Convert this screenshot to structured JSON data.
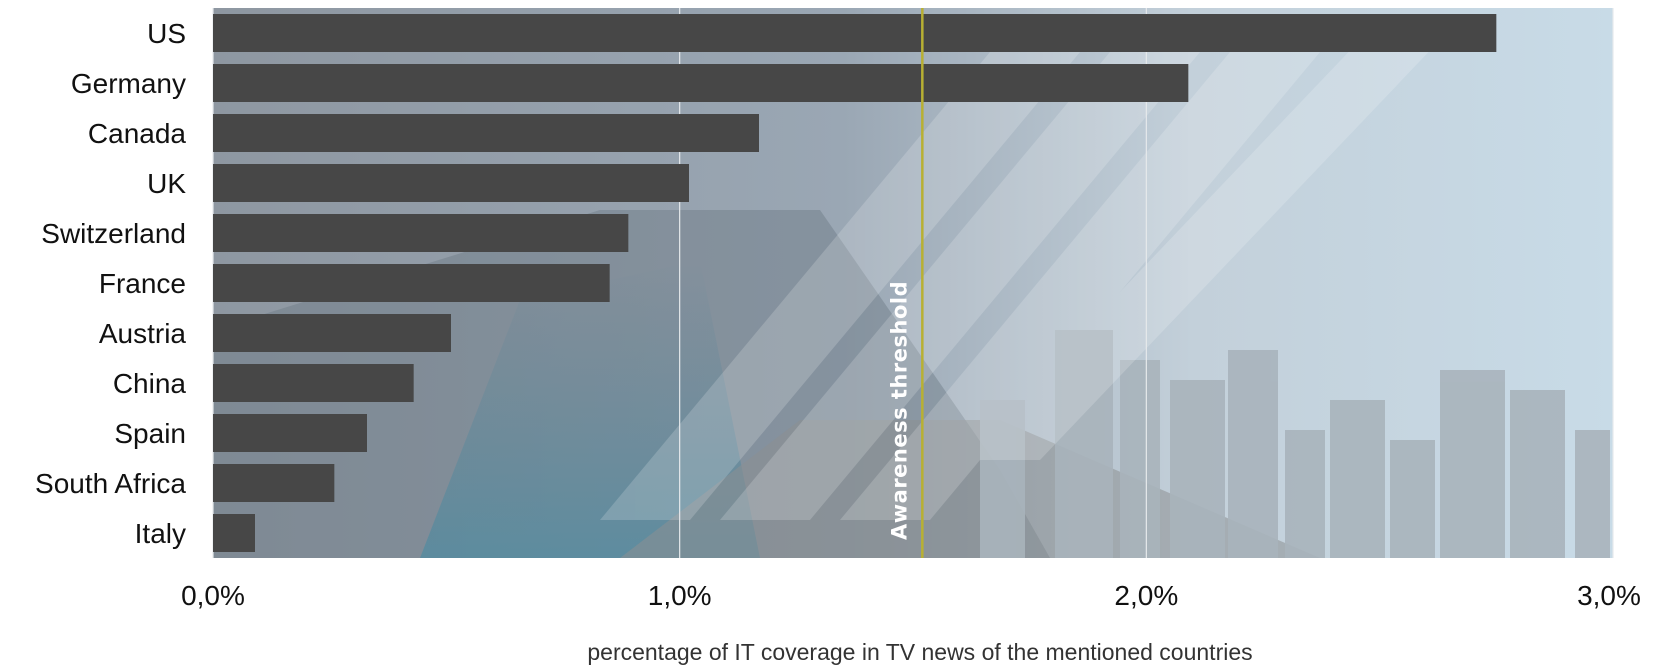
{
  "chart_data": {
    "type": "bar",
    "orientation": "horizontal",
    "categories": [
      "US",
      "Germany",
      "Canada",
      "UK",
      "Switzerland",
      "France",
      "Austria",
      "China",
      "Spain",
      "South Africa",
      "Italy"
    ],
    "values": [
      2.75,
      2.09,
      1.17,
      1.02,
      0.89,
      0.85,
      0.51,
      0.43,
      0.33,
      0.26,
      0.09
    ],
    "unit": "%",
    "xlim": [
      0,
      3.0
    ],
    "xticks": [
      0,
      1.0,
      2.0,
      3.0
    ],
    "xtick_labels": [
      "0,0%",
      "1,0%",
      "2,0%",
      "3,0%"
    ],
    "xlabel": "percentage of IT coverage in TV news of the mentioned countries",
    "ylabel": "",
    "title": "",
    "grid": "vertical",
    "bar_color": "#474747",
    "background": "city skyline and laptop photo with binary digits",
    "threshold": {
      "label": "Awareness threshold",
      "value": 1.52,
      "color": "#b8b033"
    }
  }
}
